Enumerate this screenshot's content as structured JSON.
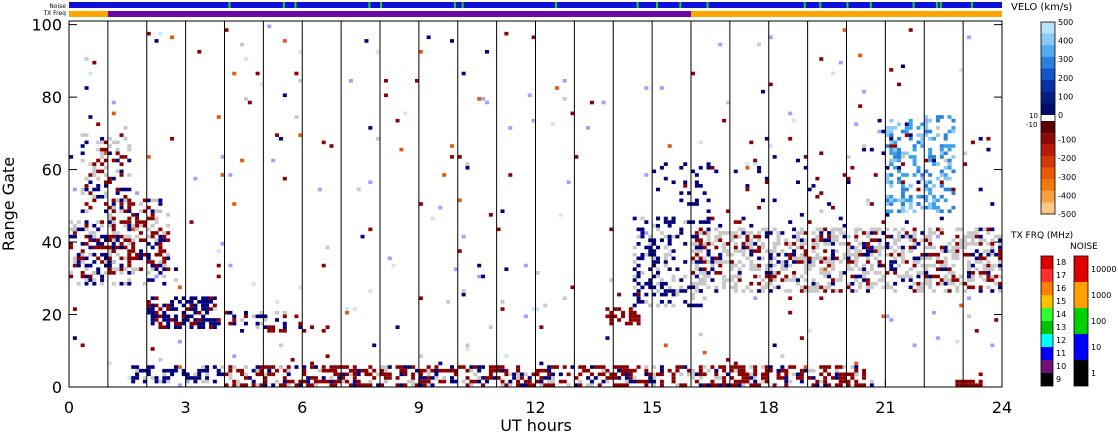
{
  "chart_data": {
    "type": "heatmap",
    "xlabel": "UT hours",
    "ylabel": "Range Gate",
    "xlim": [
      0,
      24
    ],
    "ylim": [
      0,
      101
    ],
    "xticks": [
      "0",
      "3",
      "6",
      "9",
      "12",
      "15",
      "18",
      "21",
      "24"
    ],
    "yticks": [
      "0",
      "20",
      "40",
      "60",
      "80",
      "100"
    ],
    "top_bars": {
      "noise_label": "Noise",
      "txfreq_label": "TX Freq",
      "noise_color": "#1010d8",
      "noise_marks_color": "#20d020",
      "noise_marks_hours": [
        4.1,
        5.5,
        5.8,
        7.7,
        8.0,
        9.9,
        10.1,
        12.5,
        14.6,
        15.1,
        15.7,
        16.4,
        18.9,
        19.3,
        20.0,
        20.6,
        21.7,
        22.3,
        22.4,
        23.2
      ],
      "txfreq_segments": [
        {
          "start": 0.0,
          "end": 1.0,
          "color": "#ffa500"
        },
        {
          "start": 1.0,
          "end": 16.0,
          "color": "#6a0aa0"
        },
        {
          "start": 16.0,
          "end": 24.0,
          "color": "#ffa500"
        }
      ]
    },
    "colorbars": {
      "velocity": {
        "title": "VELO (km/s)",
        "range": [
          -500,
          500
        ],
        "ticks": [
          "500",
          "400",
          "300",
          "200",
          "100",
          "0",
          "-100",
          "-200",
          "-300",
          "-400",
          "-500"
        ],
        "zero_labels": [
          "10",
          "-10"
        ],
        "colors_pos": [
          "#b8e2fa",
          "#8cc8f4",
          "#55aaee",
          "#2a80dc",
          "#1256c8",
          "#0a30a8",
          "#041e82",
          "#000e6a"
        ],
        "colors_neg": [
          "#5a0000",
          "#8c0a0a",
          "#b81c0c",
          "#d2380a",
          "#e55a06",
          "#f07a10",
          "#f5a040",
          "#fbc88a"
        ]
      },
      "tx_freq": {
        "title": "TX FRQ (MHz)",
        "ticks": [
          "18",
          "17",
          "16",
          "15",
          "14",
          "13",
          "12",
          "11",
          "10",
          "9"
        ],
        "colors": [
          "#e00000",
          "#ff3030",
          "#ff8000",
          "#ffc000",
          "#30ff30",
          "#00c000",
          "#00ffff",
          "#0000ff",
          "#70127a",
          "#000000"
        ]
      },
      "noise": {
        "title": "NOISE",
        "ticks": [
          "10000",
          "1000",
          "100",
          "10",
          "1"
        ],
        "colors": [
          "#e00000",
          "#ffa000",
          "#00d000",
          "#0000ff",
          "#000000"
        ]
      }
    },
    "series": [
      {
        "kind": "ground_scatter",
        "color": "#c8c8c8"
      },
      {
        "kind": "velocity_toward",
        "color": "#00007a"
      },
      {
        "kind": "velocity_away",
        "color": "#8b0000"
      },
      {
        "kind": "velocity_fast_toward",
        "color": "#3aa0ea"
      }
    ]
  }
}
